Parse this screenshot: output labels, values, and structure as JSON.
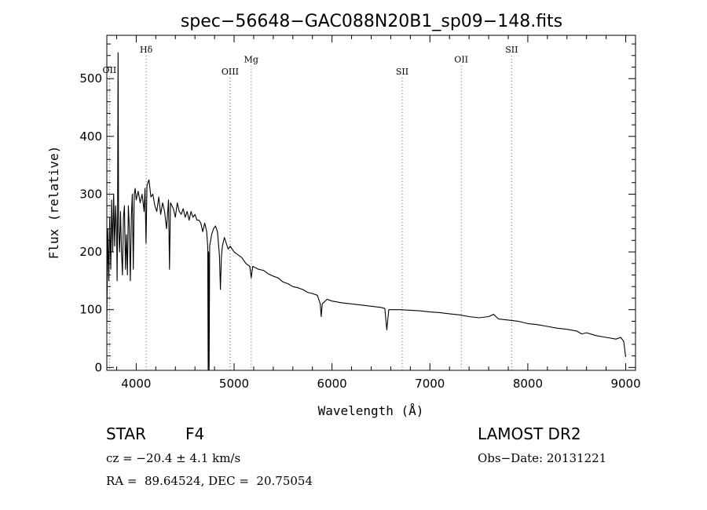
{
  "chart_data": {
    "type": "line",
    "title": "spec−56648−GAC088N20B1_sp09−148.fits",
    "xlabel": "Wavelength (Å)",
    "ylabel": "Flux (relative)",
    "xlim": [
      3700,
      9100
    ],
    "ylim": [
      -5,
      575
    ],
    "x_ticks": [
      4000,
      5000,
      6000,
      7000,
      8000,
      9000
    ],
    "y_ticks": [
      0,
      100,
      200,
      300,
      400,
      500
    ],
    "grid": false,
    "colors": {
      "spectrum": "#000000",
      "line_markers": "#cc3333",
      "axes": "#000000"
    },
    "series": [
      {
        "points": [
          [
            3700,
            80
          ],
          [
            3710,
            240
          ],
          [
            3720,
            150
          ],
          [
            3730,
            260
          ],
          [
            3740,
            170
          ],
          [
            3750,
            290
          ],
          [
            3760,
            200
          ],
          [
            3770,
            300
          ],
          [
            3780,
            210
          ],
          [
            3790,
            280
          ],
          [
            3800,
            230
          ],
          [
            3805,
            150
          ],
          [
            3810,
            270
          ],
          [
            3815,
            545
          ],
          [
            3820,
            240
          ],
          [
            3830,
            200
          ],
          [
            3840,
            270
          ],
          [
            3850,
            200
          ],
          [
            3860,
            160
          ],
          [
            3870,
            260
          ],
          [
            3880,
            280
          ],
          [
            3890,
            170
          ],
          [
            3900,
            230
          ],
          [
            3910,
            160
          ],
          [
            3920,
            280
          ],
          [
            3930,
            240
          ],
          [
            3940,
            150
          ],
          [
            3950,
            260
          ],
          [
            3960,
            300
          ],
          [
            3970,
            170
          ],
          [
            3980,
            300
          ],
          [
            3990,
            310
          ],
          [
            4000,
            290
          ],
          [
            4020,
            305
          ],
          [
            4040,
            285
          ],
          [
            4060,
            300
          ],
          [
            4080,
            270
          ],
          [
            4090,
            310
          ],
          [
            4100,
            215
          ],
          [
            4110,
            315
          ],
          [
            4130,
            325
          ],
          [
            4150,
            295
          ],
          [
            4170,
            300
          ],
          [
            4190,
            280
          ],
          [
            4210,
            270
          ],
          [
            4230,
            295
          ],
          [
            4250,
            265
          ],
          [
            4270,
            285
          ],
          [
            4290,
            270
          ],
          [
            4310,
            240
          ],
          [
            4330,
            290
          ],
          [
            4340,
            170
          ],
          [
            4350,
            285
          ],
          [
            4380,
            275
          ],
          [
            4400,
            260
          ],
          [
            4420,
            285
          ],
          [
            4440,
            270
          ],
          [
            4460,
            265
          ],
          [
            4480,
            275
          ],
          [
            4500,
            260
          ],
          [
            4520,
            270
          ],
          [
            4540,
            255
          ],
          [
            4560,
            270
          ],
          [
            4580,
            260
          ],
          [
            4600,
            265
          ],
          [
            4620,
            255
          ],
          [
            4640,
            255
          ],
          [
            4660,
            250
          ],
          [
            4680,
            235
          ],
          [
            4700,
            250
          ],
          [
            4720,
            235
          ],
          [
            4730,
            210
          ],
          [
            4735,
            -5
          ],
          [
            4740,
            200
          ],
          [
            4745,
            -5
          ],
          [
            4750,
            210
          ],
          [
            4770,
            230
          ],
          [
            4790,
            240
          ],
          [
            4810,
            245
          ],
          [
            4830,
            235
          ],
          [
            4850,
            195
          ],
          [
            4860,
            135
          ],
          [
            4870,
            190
          ],
          [
            4880,
            210
          ],
          [
            4900,
            225
          ],
          [
            4920,
            215
          ],
          [
            4940,
            205
          ],
          [
            4960,
            210
          ],
          [
            4980,
            205
          ],
          [
            5000,
            200
          ],
          [
            5040,
            195
          ],
          [
            5080,
            190
          ],
          [
            5120,
            180
          ],
          [
            5160,
            175
          ],
          [
            5175,
            155
          ],
          [
            5190,
            175
          ],
          [
            5250,
            170
          ],
          [
            5300,
            168
          ],
          [
            5350,
            162
          ],
          [
            5400,
            158
          ],
          [
            5450,
            155
          ],
          [
            5500,
            148
          ],
          [
            5550,
            145
          ],
          [
            5600,
            140
          ],
          [
            5650,
            138
          ],
          [
            5700,
            135
          ],
          [
            5750,
            130
          ],
          [
            5800,
            128
          ],
          [
            5850,
            125
          ],
          [
            5880,
            110
          ],
          [
            5890,
            88
          ],
          [
            5900,
            110
          ],
          [
            5950,
            118
          ],
          [
            6000,
            115
          ],
          [
            6100,
            112
          ],
          [
            6200,
            110
          ],
          [
            6300,
            108
          ],
          [
            6400,
            106
          ],
          [
            6500,
            104
          ],
          [
            6540,
            102
          ],
          [
            6560,
            65
          ],
          [
            6580,
            100
          ],
          [
            6700,
            100
          ],
          [
            6800,
            99
          ],
          [
            6900,
            98
          ],
          [
            7000,
            96
          ],
          [
            7100,
            95
          ],
          [
            7200,
            93
          ],
          [
            7300,
            91
          ],
          [
            7400,
            88
          ],
          [
            7500,
            86
          ],
          [
            7600,
            88
          ],
          [
            7650,
            92
          ],
          [
            7700,
            84
          ],
          [
            7800,
            82
          ],
          [
            7900,
            80
          ],
          [
            8000,
            76
          ],
          [
            8100,
            74
          ],
          [
            8200,
            71
          ],
          [
            8300,
            68
          ],
          [
            8400,
            66
          ],
          [
            8500,
            63
          ],
          [
            8550,
            58
          ],
          [
            8600,
            60
          ],
          [
            8700,
            55
          ],
          [
            8800,
            52
          ],
          [
            8900,
            49
          ],
          [
            8950,
            52
          ],
          [
            8980,
            45
          ],
          [
            9000,
            18
          ]
        ]
      }
    ],
    "line_markers": [
      {
        "label": "OII",
        "wavelength": 3727,
        "label_y": 510
      },
      {
        "label": "Hδ",
        "wavelength": 4102,
        "label_y": 545
      },
      {
        "label": "OIII",
        "wavelength": 4959,
        "label_y": 507
      },
      {
        "label": "Mg",
        "wavelength": 5175,
        "label_y": 528
      },
      {
        "label": "SII",
        "wavelength": 6717,
        "label_y": 507
      },
      {
        "label": "OII",
        "wavelength": 7320,
        "label_y": 528
      },
      {
        "label": "SII",
        "wavelength": 7835,
        "label_y": 545
      }
    ]
  },
  "info": {
    "object_class": "STAR",
    "subclass": "F4",
    "survey": "LAMOST DR2",
    "redshift": "cz = −20.4 ± 4.1 km/s",
    "obs_date": "Obs−Date: 20131221",
    "coordinates": "RA =  89.64524, DEC =  20.75054"
  }
}
